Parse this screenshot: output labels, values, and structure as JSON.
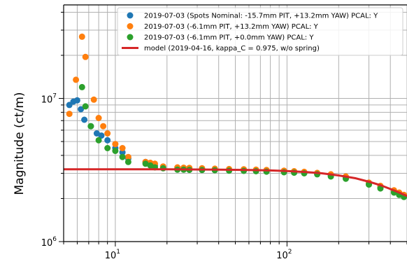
{
  "chart_data": {
    "type": "scatter",
    "x_scale": "log",
    "y_scale": "log",
    "xlim": [
      5,
      500
    ],
    "ylim": [
      1000000,
      45000000
    ],
    "grid": true,
    "legend_position": "top-right",
    "xlabel": "",
    "ylabel": "Magnitude (ct/m)",
    "x_ticks": [
      {
        "value": 10,
        "label": "10",
        "exp": "1"
      },
      {
        "value": 100,
        "label": "10",
        "exp": "2"
      }
    ],
    "y_ticks": [
      {
        "value": 1000000,
        "label": "10",
        "exp": "6"
      },
      {
        "value": 10000000,
        "label": "10",
        "exp": "7"
      }
    ],
    "series": [
      {
        "name": "2019-07-03 (Spots Nominal: -15.7mm PIT, +13.2mm YAW) PCAL: Y",
        "marker": "circle",
        "color": "#1f77b4",
        "points": [
          [
            5.4,
            9000000
          ],
          [
            5.7,
            9500000
          ],
          [
            6.0,
            9700000
          ],
          [
            6.3,
            8400000
          ],
          [
            6.6,
            7100000
          ],
          [
            7.2,
            6400000
          ],
          [
            7.8,
            5700000
          ],
          [
            8.3,
            5500000
          ],
          [
            9.0,
            5100000
          ],
          [
            10.0,
            4500000
          ],
          [
            11.0,
            4200000
          ],
          [
            11.9,
            3800000
          ],
          [
            15.0,
            3600000
          ],
          [
            16.0,
            3500000
          ],
          [
            17.0,
            3400000
          ],
          [
            19.0,
            3300000
          ],
          [
            23.0,
            3250000
          ],
          [
            25.0,
            3250000
          ],
          [
            27.0,
            3230000
          ],
          [
            32.0,
            3220000
          ],
          [
            38.0,
            3200000
          ],
          [
            46.0,
            3180000
          ],
          [
            56.0,
            3170000
          ],
          [
            66.0,
            3150000
          ],
          [
            76.0,
            3130000
          ],
          [
            96.0,
            3100000
          ],
          [
            110.0,
            3080000
          ],
          [
            126.0,
            3050000
          ],
          [
            150.0,
            3000000
          ],
          [
            180.0,
            2900000
          ],
          [
            220.0,
            2800000
          ],
          [
            300.0,
            2550000
          ],
          [
            350.0,
            2400000
          ],
          [
            420.0,
            2250000
          ],
          [
            450.0,
            2170000
          ],
          [
            480.0,
            2100000
          ]
        ]
      },
      {
        "name": "2019-07-03 (-6.1mm PIT, +13.2mm YAW) PCAL: Y",
        "marker": "circle",
        "color": "#ff7f0e",
        "points": [
          [
            5.4,
            7800000
          ],
          [
            5.9,
            13500000
          ],
          [
            6.4,
            27000000
          ],
          [
            6.7,
            19500000
          ],
          [
            7.5,
            9800000
          ],
          [
            8.0,
            7300000
          ],
          [
            8.5,
            6400000
          ],
          [
            9.0,
            5700000
          ],
          [
            10.0,
            4800000
          ],
          [
            11.0,
            4500000
          ],
          [
            11.9,
            3900000
          ],
          [
            15.0,
            3600000
          ],
          [
            16.0,
            3550000
          ],
          [
            17.0,
            3500000
          ],
          [
            19.0,
            3350000
          ],
          [
            23.0,
            3300000
          ],
          [
            25.0,
            3280000
          ],
          [
            27.0,
            3270000
          ],
          [
            32.0,
            3250000
          ],
          [
            38.0,
            3230000
          ],
          [
            46.0,
            3210000
          ],
          [
            56.0,
            3200000
          ],
          [
            66.0,
            3180000
          ],
          [
            76.0,
            3160000
          ],
          [
            96.0,
            3130000
          ],
          [
            110.0,
            3100000
          ],
          [
            126.0,
            3070000
          ],
          [
            150.0,
            3020000
          ],
          [
            180.0,
            2950000
          ],
          [
            220.0,
            2850000
          ],
          [
            300.0,
            2580000
          ],
          [
            350.0,
            2450000
          ],
          [
            420.0,
            2280000
          ],
          [
            450.0,
            2200000
          ],
          [
            480.0,
            2120000
          ]
        ]
      },
      {
        "name": "2019-07-03 (-6.1mm PIT, +0.0mm YAW) PCAL: Y",
        "marker": "circle",
        "color": "#2ca02c",
        "points": [
          [
            6.4,
            12000000
          ],
          [
            6.7,
            8800000
          ],
          [
            7.2,
            6400000
          ],
          [
            8.0,
            5100000
          ],
          [
            9.0,
            4500000
          ],
          [
            10.0,
            4300000
          ],
          [
            11.0,
            3900000
          ],
          [
            11.9,
            3600000
          ],
          [
            15.0,
            3500000
          ],
          [
            16.0,
            3400000
          ],
          [
            17.0,
            3300000
          ],
          [
            19.0,
            3250000
          ],
          [
            23.0,
            3180000
          ],
          [
            25.0,
            3180000
          ],
          [
            27.0,
            3170000
          ],
          [
            32.0,
            3160000
          ],
          [
            38.0,
            3150000
          ],
          [
            46.0,
            3130000
          ],
          [
            56.0,
            3120000
          ],
          [
            66.0,
            3100000
          ],
          [
            76.0,
            3080000
          ],
          [
            96.0,
            3050000
          ],
          [
            110.0,
            3030000
          ],
          [
            126.0,
            3000000
          ],
          [
            150.0,
            2950000
          ],
          [
            180.0,
            2850000
          ],
          [
            220.0,
            2750000
          ],
          [
            300.0,
            2500000
          ],
          [
            350.0,
            2350000
          ],
          [
            420.0,
            2200000
          ],
          [
            450.0,
            2120000
          ],
          [
            480.0,
            2050000
          ]
        ]
      },
      {
        "name": "model (2019-04-16, kappa_C = 0.975, w/o spring)",
        "marker": "line",
        "color": "#d62728",
        "points": [
          [
            5,
            3200000
          ],
          [
            20,
            3200000
          ],
          [
            40,
            3180000
          ],
          [
            60,
            3160000
          ],
          [
            80,
            3140000
          ],
          [
            100,
            3110000
          ],
          [
            130,
            3060000
          ],
          [
            160,
            3000000
          ],
          [
            200,
            2900000
          ],
          [
            250,
            2770000
          ],
          [
            300,
            2620000
          ],
          [
            350,
            2480000
          ],
          [
            400,
            2330000
          ],
          [
            450,
            2200000
          ],
          [
            500,
            2080000
          ]
        ]
      }
    ]
  }
}
